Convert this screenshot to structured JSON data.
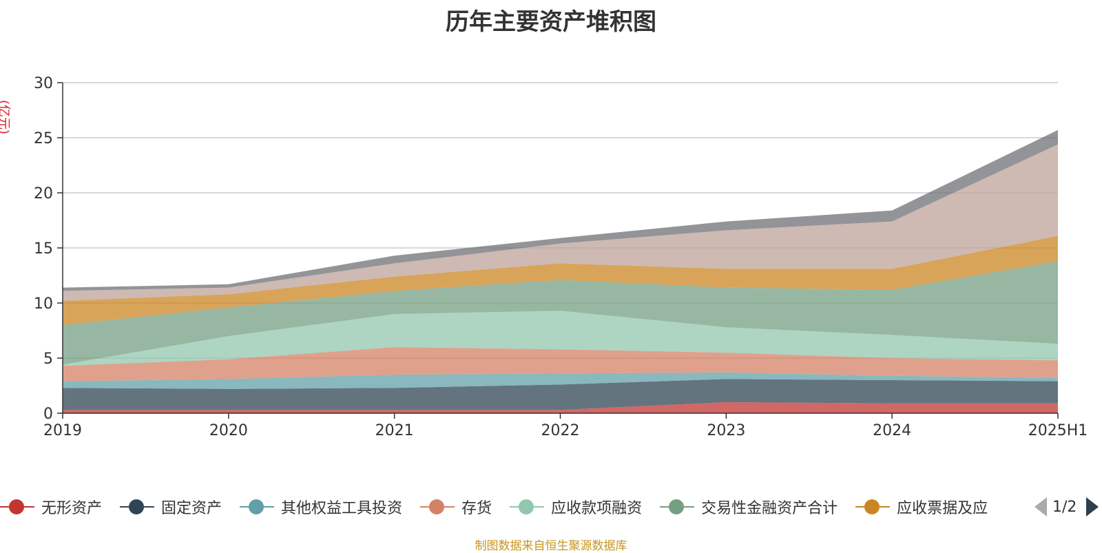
{
  "chart_data": {
    "type": "area",
    "stacked": true,
    "title": "历年主要资产堆积图",
    "y_unit": "(亿元)",
    "x": [
      "2019",
      "2020",
      "2021",
      "2022",
      "2023",
      "2024",
      "2025H1"
    ],
    "ylim": [
      0,
      30
    ],
    "yticks": [
      0,
      5,
      10,
      15,
      20,
      25,
      30
    ],
    "grid": true,
    "series": [
      {
        "name": "无形资产",
        "color": "#c23531",
        "values": [
          0.3,
          0.3,
          0.3,
          0.3,
          1.0,
          0.9,
          0.9
        ]
      },
      {
        "name": "固定资产",
        "color": "#2f4554",
        "values": [
          2.0,
          1.9,
          2.0,
          2.3,
          2.1,
          2.1,
          2.0
        ]
      },
      {
        "name": "其他权益工具投资",
        "color": "#61a0a8",
        "values": [
          0.6,
          0.9,
          1.2,
          1.0,
          0.6,
          0.4,
          0.3
        ]
      },
      {
        "name": "存货",
        "color": "#d48265",
        "values": [
          1.4,
          1.8,
          2.5,
          2.2,
          1.8,
          1.6,
          1.6
        ]
      },
      {
        "name": "应收款项融资",
        "color": "#91c7ae",
        "values": [
          0.1,
          2.1,
          3.0,
          3.5,
          2.3,
          2.1,
          1.5
        ]
      },
      {
        "name": "交易性金融资产合计",
        "color": "#749f83",
        "values": [
          3.6,
          2.6,
          2.1,
          2.8,
          3.6,
          4.1,
          7.5
        ]
      },
      {
        "name": "应收票据及应收账款",
        "color": "#ca8622",
        "values": [
          2.2,
          1.2,
          1.3,
          1.5,
          1.7,
          1.9,
          2.3
        ]
      },
      {
        "name": "",
        "color": "#bda29a",
        "values": [
          0.9,
          0.6,
          1.2,
          1.8,
          3.5,
          4.3,
          8.3
        ]
      },
      {
        "name": "",
        "color": "#6e7074",
        "values": [
          0.3,
          0.3,
          0.7,
          0.5,
          0.8,
          1.0,
          1.3
        ]
      }
    ]
  },
  "legend": {
    "items": [
      {
        "label": "无形资产",
        "color": "#c23531"
      },
      {
        "label": "固定资产",
        "color": "#2f4554"
      },
      {
        "label": "其他权益工具投资",
        "color": "#61a0a8"
      },
      {
        "label": "存货",
        "color": "#d48265"
      },
      {
        "label": "应收款项融资",
        "color": "#91c7ae"
      },
      {
        "label": "交易性金融资产合计",
        "color": "#749f83"
      },
      {
        "label": "应收票据及应",
        "color": "#ca8622"
      }
    ],
    "page_indicator": "1/2"
  },
  "source_note": "制图数据来自恒生聚源数据库"
}
